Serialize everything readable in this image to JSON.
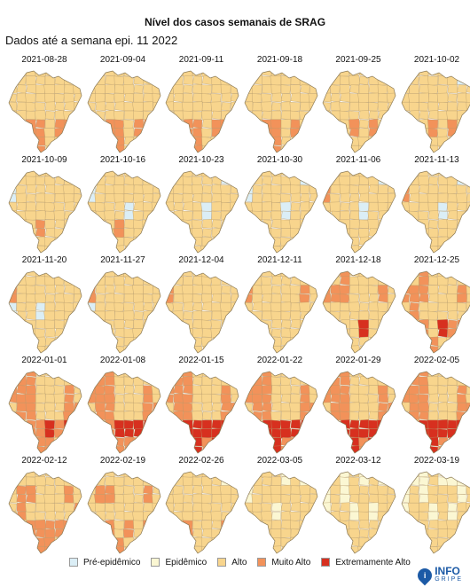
{
  "header": {
    "title": "Nível dos casos semanais de SRAG",
    "subtitle": "Dados até a semana epi. 11 2022"
  },
  "levels": [
    {
      "name": "Pré-epidêmico",
      "color": "#dbeef6"
    },
    {
      "name": "Epidêmico",
      "color": "#fbf7d3"
    },
    {
      "name": "Alto",
      "color": "#f8d58d"
    },
    {
      "name": "Muito Alto",
      "color": "#f2925a"
    },
    {
      "name": "Extremamente Alto",
      "color": "#d7301f"
    }
  ],
  "weeks": [
    {
      "date": "2021-08-28",
      "levels": [
        0,
        2,
        2,
        2,
        2,
        2,
        2,
        2,
        2,
        2,
        2,
        2,
        2,
        2,
        2,
        2,
        2,
        2,
        2,
        2,
        2,
        2,
        2,
        2,
        2,
        2,
        3,
        3,
        2,
        3,
        3,
        3,
        3,
        4,
        3,
        3,
        2,
        2,
        2,
        2
      ]
    },
    {
      "date": "2021-09-04",
      "levels": [
        0,
        2,
        2,
        2,
        2,
        2,
        2,
        2,
        2,
        2,
        2,
        2,
        2,
        2,
        2,
        2,
        2,
        2,
        2,
        2,
        2,
        2,
        2,
        2,
        2,
        2,
        3,
        3,
        2,
        3,
        3,
        3,
        3,
        4,
        4,
        3,
        2,
        2,
        2,
        2
      ]
    },
    {
      "date": "2021-09-11",
      "levels": [
        0,
        2,
        2,
        2,
        2,
        2,
        2,
        2,
        2,
        2,
        2,
        2,
        2,
        2,
        2,
        2,
        2,
        2,
        2,
        2,
        2,
        2,
        2,
        2,
        2,
        2,
        3,
        3,
        2,
        3,
        3,
        3,
        3,
        4,
        3,
        3,
        2,
        2,
        2,
        2
      ]
    },
    {
      "date": "2021-09-18",
      "levels": [
        0,
        2,
        2,
        2,
        2,
        2,
        2,
        2,
        2,
        2,
        2,
        2,
        2,
        2,
        2,
        2,
        2,
        2,
        2,
        2,
        2,
        2,
        2,
        2,
        2,
        2,
        3,
        3,
        2,
        3,
        2,
        3,
        3,
        3,
        3,
        3,
        2,
        2,
        2,
        2
      ]
    },
    {
      "date": "2021-09-25",
      "levels": [
        0,
        2,
        2,
        2,
        2,
        2,
        2,
        2,
        2,
        2,
        2,
        2,
        2,
        2,
        2,
        2,
        2,
        2,
        2,
        2,
        2,
        2,
        2,
        2,
        2,
        2,
        2,
        3,
        2,
        3,
        2,
        3,
        2,
        3,
        3,
        2,
        2,
        2,
        2,
        2
      ]
    },
    {
      "date": "2021-10-02",
      "levels": [
        0,
        2,
        2,
        2,
        2,
        2,
        0,
        2,
        2,
        2,
        2,
        2,
        2,
        2,
        2,
        2,
        2,
        2,
        2,
        2,
        2,
        2,
        2,
        2,
        2,
        2,
        2,
        3,
        2,
        3,
        2,
        3,
        2,
        3,
        3,
        2,
        2,
        2,
        2,
        2
      ]
    },
    {
      "date": "2021-10-09",
      "levels": [
        0,
        2,
        2,
        2,
        2,
        2,
        2,
        2,
        0,
        2,
        2,
        2,
        2,
        2,
        2,
        2,
        2,
        2,
        2,
        2,
        2,
        2,
        2,
        2,
        2,
        2,
        2,
        3,
        2,
        2,
        2,
        3,
        2,
        3,
        2,
        2,
        2,
        2,
        2,
        2
      ]
    },
    {
      "date": "2021-10-16",
      "levels": [
        0,
        2,
        2,
        2,
        2,
        2,
        2,
        2,
        0,
        2,
        2,
        2,
        2,
        2,
        2,
        2,
        2,
        2,
        2,
        2,
        0,
        2,
        2,
        2,
        2,
        2,
        2,
        3,
        2,
        2,
        2,
        3,
        2,
        3,
        2,
        2,
        2,
        2,
        2,
        2
      ]
    },
    {
      "date": "2021-10-23",
      "levels": [
        0,
        2,
        2,
        2,
        2,
        2,
        0,
        2,
        2,
        2,
        2,
        2,
        2,
        2,
        2,
        2,
        2,
        2,
        2,
        2,
        0,
        2,
        2,
        2,
        2,
        2,
        2,
        2,
        2,
        2,
        2,
        3,
        2,
        3,
        2,
        2,
        2,
        2,
        2,
        2
      ]
    },
    {
      "date": "2021-10-30",
      "levels": [
        0,
        2,
        2,
        2,
        2,
        2,
        0,
        2,
        0,
        2,
        2,
        2,
        2,
        2,
        2,
        2,
        2,
        2,
        2,
        2,
        0,
        2,
        2,
        2,
        2,
        2,
        2,
        2,
        2,
        2,
        2,
        3,
        2,
        3,
        2,
        2,
        2,
        2,
        2,
        2
      ]
    },
    {
      "date": "2021-11-06",
      "levels": [
        0,
        2,
        2,
        2,
        2,
        2,
        0,
        3,
        3,
        2,
        2,
        2,
        2,
        2,
        2,
        2,
        2,
        2,
        2,
        2,
        0,
        2,
        2,
        2,
        2,
        2,
        2,
        2,
        2,
        2,
        2,
        3,
        2,
        3,
        2,
        2,
        2,
        2,
        2,
        2
      ]
    },
    {
      "date": "2021-11-13",
      "levels": [
        0,
        2,
        2,
        2,
        2,
        2,
        0,
        3,
        3,
        2,
        2,
        2,
        2,
        2,
        2,
        2,
        2,
        2,
        2,
        2,
        0,
        2,
        2,
        2,
        2,
        2,
        2,
        2,
        2,
        2,
        2,
        3,
        2,
        3,
        2,
        2,
        2,
        2,
        2,
        2
      ]
    },
    {
      "date": "2021-11-20",
      "levels": [
        2,
        2,
        2,
        2,
        2,
        2,
        2,
        3,
        3,
        2,
        2,
        2,
        2,
        2,
        2,
        2,
        0,
        2,
        2,
        0,
        2,
        2,
        2,
        2,
        2,
        2,
        2,
        2,
        2,
        2,
        2,
        2,
        2,
        3,
        2,
        2,
        2,
        2,
        2,
        2
      ]
    },
    {
      "date": "2021-11-27",
      "levels": [
        2,
        2,
        2,
        2,
        2,
        2,
        2,
        3,
        3,
        2,
        2,
        2,
        2,
        2,
        2,
        2,
        0,
        2,
        2,
        2,
        2,
        2,
        2,
        2,
        2,
        2,
        2,
        2,
        2,
        2,
        2,
        2,
        2,
        3,
        2,
        2,
        2,
        2,
        2,
        2
      ]
    },
    {
      "date": "2021-12-04",
      "levels": [
        2,
        2,
        2,
        2,
        2,
        2,
        2,
        3,
        3,
        2,
        2,
        2,
        2,
        2,
        2,
        2,
        2,
        2,
        2,
        2,
        2,
        2,
        2,
        2,
        2,
        2,
        2,
        2,
        2,
        2,
        2,
        2,
        2,
        2,
        2,
        2,
        2,
        2,
        2,
        2
      ]
    },
    {
      "date": "2021-12-11",
      "levels": [
        2,
        2,
        2,
        2,
        2,
        2,
        2,
        3,
        3,
        2,
        2,
        2,
        2,
        2,
        3,
        2,
        2,
        2,
        2,
        2,
        2,
        2,
        2,
        2,
        2,
        2,
        2,
        2,
        2,
        2,
        2,
        3,
        2,
        2,
        2,
        2,
        2,
        2,
        2,
        2
      ]
    },
    {
      "date": "2021-12-18",
      "levels": [
        2,
        2,
        3,
        2,
        2,
        2,
        2,
        3,
        3,
        3,
        3,
        2,
        2,
        2,
        3,
        2,
        2,
        2,
        2,
        2,
        2,
        2,
        2,
        2,
        2,
        2,
        2,
        2,
        4,
        2,
        2,
        3,
        2,
        3,
        2,
        2,
        2,
        2,
        2,
        2
      ]
    },
    {
      "date": "2021-12-25",
      "levels": [
        2,
        2,
        3,
        2,
        2,
        2,
        2,
        3,
        3,
        3,
        3,
        2,
        2,
        2,
        3,
        2,
        2,
        3,
        2,
        2,
        2,
        2,
        2,
        2,
        2,
        2,
        3,
        2,
        4,
        3,
        3,
        3,
        4,
        3,
        3,
        3,
        2,
        2,
        2,
        2
      ]
    },
    {
      "date": "2022-01-01",
      "levels": [
        3,
        3,
        3,
        2,
        2,
        2,
        2,
        3,
        3,
        3,
        3,
        2,
        2,
        2,
        3,
        2,
        2,
        3,
        3,
        2,
        2,
        2,
        3,
        3,
        2,
        2,
        3,
        3,
        4,
        3,
        4,
        4,
        4,
        4,
        3,
        3,
        3,
        2,
        3,
        2
      ]
    },
    {
      "date": "2022-01-08",
      "levels": [
        3,
        3,
        3,
        2,
        2,
        2,
        2,
        3,
        3,
        3,
        3,
        2,
        2,
        2,
        3,
        2,
        2,
        3,
        3,
        2,
        2,
        2,
        3,
        3,
        2,
        2,
        3,
        4,
        4,
        4,
        4,
        4,
        4,
        4,
        4,
        3,
        3,
        3,
        3,
        2
      ]
    },
    {
      "date": "2022-01-15",
      "levels": [
        3,
        3,
        3,
        2,
        2,
        2,
        2,
        3,
        3,
        3,
        3,
        2,
        2,
        2,
        3,
        2,
        2,
        3,
        3,
        2,
        2,
        2,
        3,
        3,
        2,
        2,
        4,
        4,
        4,
        4,
        4,
        4,
        4,
        4,
        4,
        4,
        3,
        4,
        3,
        3
      ]
    },
    {
      "date": "2022-01-22",
      "levels": [
        3,
        3,
        3,
        2,
        2,
        2,
        2,
        3,
        3,
        3,
        3,
        2,
        2,
        2,
        3,
        2,
        2,
        3,
        3,
        2,
        2,
        2,
        3,
        3,
        2,
        2,
        4,
        4,
        4,
        4,
        4,
        4,
        4,
        4,
        4,
        4,
        3,
        3,
        3,
        3
      ]
    },
    {
      "date": "2022-01-29",
      "levels": [
        3,
        3,
        3,
        2,
        2,
        2,
        2,
        3,
        3,
        3,
        3,
        2,
        2,
        2,
        3,
        2,
        2,
        3,
        3,
        2,
        2,
        2,
        3,
        3,
        2,
        2,
        4,
        4,
        4,
        4,
        4,
        4,
        4,
        4,
        4,
        4,
        3,
        4,
        3,
        3
      ]
    },
    {
      "date": "2022-02-05",
      "levels": [
        3,
        3,
        3,
        2,
        2,
        2,
        2,
        3,
        3,
        3,
        3,
        2,
        2,
        2,
        3,
        2,
        2,
        3,
        3,
        2,
        2,
        2,
        3,
        3,
        2,
        2,
        4,
        4,
        4,
        4,
        4,
        4,
        4,
        4,
        4,
        4,
        3,
        3,
        3,
        3
      ]
    },
    {
      "date": "2022-02-12",
      "levels": [
        2,
        2,
        2,
        2,
        2,
        2,
        2,
        3,
        2,
        3,
        3,
        2,
        2,
        2,
        3,
        2,
        2,
        3,
        2,
        2,
        2,
        2,
        2,
        3,
        2,
        2,
        3,
        3,
        3,
        3,
        3,
        4,
        3,
        3,
        3,
        3,
        3,
        2,
        2,
        2
      ]
    },
    {
      "date": "2022-02-19",
      "levels": [
        2,
        2,
        2,
        2,
        2,
        2,
        2,
        3,
        2,
        3,
        3,
        2,
        2,
        2,
        3,
        2,
        2,
        2,
        2,
        2,
        2,
        2,
        2,
        2,
        2,
        2,
        3,
        2,
        3,
        2,
        3,
        3,
        3,
        3,
        2,
        3,
        2,
        2,
        2,
        2
      ]
    },
    {
      "date": "2022-02-26",
      "levels": [
        2,
        2,
        2,
        2,
        2,
        2,
        1,
        2,
        2,
        2,
        2,
        2,
        2,
        2,
        2,
        2,
        2,
        2,
        2,
        2,
        2,
        2,
        2,
        2,
        2,
        2,
        3,
        2,
        2,
        2,
        3,
        3,
        3,
        2,
        2,
        2,
        2,
        2,
        2,
        2
      ]
    },
    {
      "date": "2022-03-05",
      "levels": [
        1,
        2,
        2,
        2,
        1,
        2,
        1,
        2,
        1,
        2,
        2,
        2,
        2,
        2,
        2,
        2,
        2,
        2,
        2,
        1,
        2,
        2,
        2,
        2,
        2,
        2,
        2,
        2,
        2,
        2,
        2,
        3,
        2,
        2,
        2,
        2,
        2,
        2,
        2,
        2
      ]
    },
    {
      "date": "2022-03-12",
      "levels": [
        1,
        2,
        1,
        2,
        1,
        2,
        1,
        2,
        1,
        2,
        1,
        2,
        2,
        2,
        2,
        2,
        1,
        2,
        2,
        1,
        2,
        1,
        2,
        2,
        2,
        2,
        2,
        2,
        2,
        2,
        2,
        2,
        2,
        2,
        2,
        2,
        2,
        2,
        2,
        2
      ]
    },
    {
      "date": "2022-03-19",
      "levels": [
        1,
        1,
        1,
        2,
        1,
        1,
        1,
        1,
        1,
        2,
        1,
        2,
        2,
        2,
        1,
        2,
        1,
        2,
        2,
        1,
        2,
        1,
        2,
        2,
        2,
        2,
        2,
        2,
        2,
        2,
        2,
        2,
        2,
        2,
        2,
        2,
        2,
        2,
        2,
        2
      ]
    }
  ],
  "logo": {
    "info": "INFO",
    "gripe": "GRIPE",
    "glyph": "i",
    "icon": "map-pin-icon"
  }
}
